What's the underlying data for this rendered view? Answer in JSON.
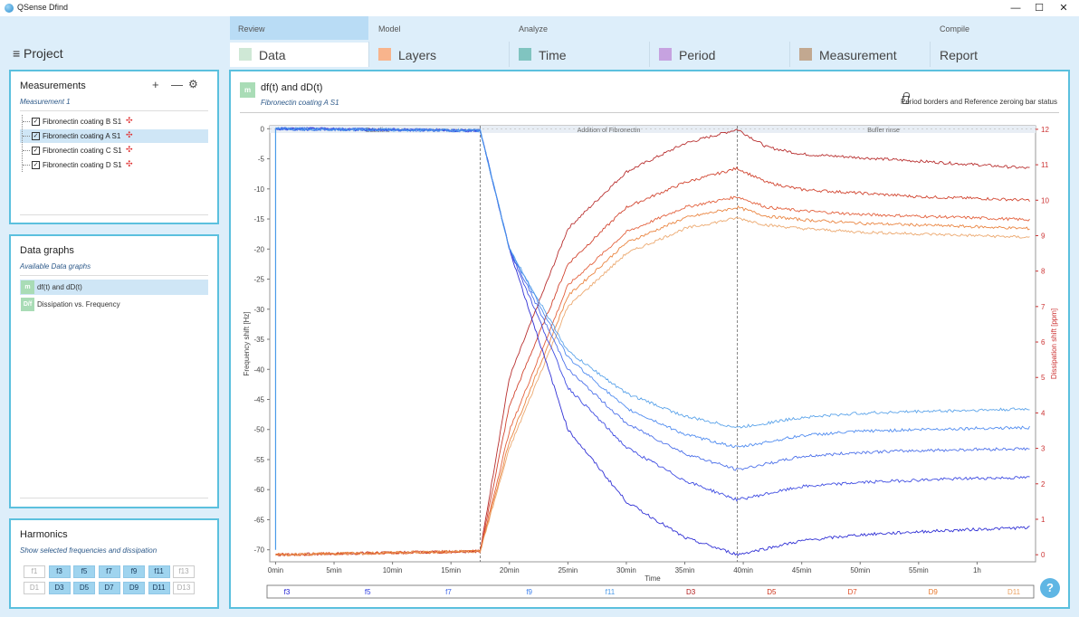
{
  "window": {
    "title": "QSense Dfind",
    "minimize": "—",
    "maximize": "☐",
    "close": "✕"
  },
  "nav": {
    "project": "≡ Project",
    "groups": {
      "review": "Review",
      "model": "Model",
      "analyze": "Analyze",
      "compile": "Compile"
    },
    "tabs": [
      {
        "label": "Data",
        "color": "#cfe8d6"
      },
      {
        "label": "Layers",
        "color": "#f8b48c"
      },
      {
        "label": "Time",
        "color": "#80c4c0"
      },
      {
        "label": "Period",
        "color": "#c6a2e0"
      },
      {
        "label": "Measurement",
        "color": "#c2a890"
      },
      {
        "label": "Report",
        "color": ""
      }
    ],
    "active_tab": "Data"
  },
  "measurements": {
    "title": "Measurements",
    "subtitle": "Measurement 1",
    "add": "+",
    "remove": "—",
    "settings": "⚙",
    "items": [
      {
        "name": "Fibronectin coating B S1",
        "selected": false
      },
      {
        "name": "Fibronectin coating A S1",
        "selected": true
      },
      {
        "name": "Fibronectin coating C S1",
        "selected": false
      },
      {
        "name": "Fibronectin coating D S1",
        "selected": false
      }
    ],
    "status_icon": "✣",
    "check": "✓"
  },
  "data_graphs": {
    "title": "Data graphs",
    "subtitle": "Available Data graphs",
    "items": [
      {
        "badge": "m",
        "label": "df(t) and dD(t)",
        "selected": true
      },
      {
        "badge": "D/f",
        "label": "Dissipation vs. Frequency",
        "selected": false
      }
    ]
  },
  "harmonics": {
    "title": "Harmonics",
    "subtitle": "Show selected frequencies and dissipation",
    "freq": [
      {
        "label": "f1",
        "on": false
      },
      {
        "label": "f3",
        "on": true
      },
      {
        "label": "f5",
        "on": true
      },
      {
        "label": "f7",
        "on": true
      },
      {
        "label": "f9",
        "on": true
      },
      {
        "label": "f11",
        "on": true
      },
      {
        "label": "f13",
        "on": false
      }
    ],
    "diss": [
      {
        "label": "D1",
        "on": false
      },
      {
        "label": "D3",
        "on": true
      },
      {
        "label": "D5",
        "on": true
      },
      {
        "label": "D7",
        "on": true
      },
      {
        "label": "D9",
        "on": true
      },
      {
        "label": "D11",
        "on": true
      },
      {
        "label": "D13",
        "on": false
      }
    ]
  },
  "main": {
    "badge": "m",
    "title": "df(t) and dD(t)",
    "subtitle": "Fibronectin coating A S1",
    "period_status": "Period borders and Reference zeroing bar status",
    "help": "?"
  },
  "chart_data": {
    "type": "line",
    "xlabel": "Time",
    "ylabel": "Frequency shift [Hz]",
    "y2label": "Dissipation shift [ppm]",
    "x_ticks": [
      "0min",
      "5min",
      "10min",
      "15min",
      "20min",
      "25min",
      "30min",
      "35min",
      "40min",
      "45min",
      "50min",
      "55min",
      "1h"
    ],
    "x_tick_minutes": [
      0,
      5,
      10,
      15,
      20,
      25,
      30,
      35,
      40,
      45,
      50,
      55,
      60
    ],
    "xlim": [
      -0.5,
      65
    ],
    "ylim": [
      -72,
      0.5
    ],
    "y_ticks": [
      0,
      -5,
      -10,
      -15,
      -20,
      -25,
      -30,
      -35,
      -40,
      -45,
      -50,
      -55,
      -60,
      -65,
      -70
    ],
    "y2lim": [
      -0.2,
      12.1
    ],
    "y2_ticks": [
      0,
      1,
      2,
      3,
      4,
      5,
      6,
      7,
      8,
      9,
      10,
      11,
      12
    ],
    "periods": [
      {
        "label": "Baseline",
        "start": 0,
        "end": 17.5
      },
      {
        "label": "Addition of Fibronectin",
        "start": 17.5,
        "end": 39.5
      },
      {
        "label": "Buffer rinse",
        "start": 39.5,
        "end": 64.5
      }
    ],
    "series": [
      {
        "name": "f3",
        "axis": "left",
        "color": "#1a1ad0",
        "values": [
          [
            0,
            0
          ],
          [
            17.5,
            -0.3
          ],
          [
            20,
            -20
          ],
          [
            25,
            -50
          ],
          [
            30,
            -62
          ],
          [
            35,
            -68
          ],
          [
            39.5,
            -70.8
          ],
          [
            45,
            -68.5
          ],
          [
            50,
            -67.5
          ],
          [
            55,
            -67
          ],
          [
            60,
            -66.6
          ],
          [
            64.5,
            -66.3
          ]
        ]
      },
      {
        "name": "f5",
        "axis": "left",
        "color": "#2a3adf",
        "values": [
          [
            0,
            0
          ],
          [
            17.5,
            -0.3
          ],
          [
            20,
            -20
          ],
          [
            25,
            -43
          ],
          [
            30,
            -53
          ],
          [
            35,
            -58.5
          ],
          [
            39.5,
            -61.7
          ],
          [
            45,
            -59.5
          ],
          [
            50,
            -58.8
          ],
          [
            55,
            -58.4
          ],
          [
            60,
            -58.1
          ],
          [
            64.5,
            -58
          ]
        ]
      },
      {
        "name": "f7",
        "axis": "left",
        "color": "#3a62e8",
        "values": [
          [
            0,
            0
          ],
          [
            17.5,
            -0.3
          ],
          [
            20,
            -20
          ],
          [
            25,
            -40
          ],
          [
            30,
            -49
          ],
          [
            35,
            -54
          ],
          [
            39.5,
            -56.7
          ],
          [
            45,
            -54.5
          ],
          [
            50,
            -53.8
          ],
          [
            55,
            -53.5
          ],
          [
            60,
            -53.3
          ],
          [
            64.5,
            -53.2
          ]
        ]
      },
      {
        "name": "f9",
        "axis": "left",
        "color": "#3d80ee",
        "values": [
          [
            0,
            0
          ],
          [
            17.5,
            -0.3
          ],
          [
            20,
            -20
          ],
          [
            25,
            -38
          ],
          [
            30,
            -46.5
          ],
          [
            35,
            -50.8
          ],
          [
            39.5,
            -53
          ],
          [
            45,
            -51
          ],
          [
            50,
            -50.3
          ],
          [
            55,
            -50
          ],
          [
            60,
            -49.8
          ],
          [
            64.5,
            -49.7
          ]
        ]
      },
      {
        "name": "f11",
        "axis": "left",
        "color": "#4a9ae8",
        "values": [
          [
            0,
            0
          ],
          [
            17.5,
            -0.3
          ],
          [
            20,
            -20
          ],
          [
            25,
            -37
          ],
          [
            30,
            -44
          ],
          [
            35,
            -47.8
          ],
          [
            39.5,
            -49.7
          ],
          [
            45,
            -48
          ],
          [
            50,
            -47.3
          ],
          [
            55,
            -47
          ],
          [
            60,
            -46.8
          ],
          [
            64.5,
            -46.6
          ]
        ]
      },
      {
        "name": "D3",
        "axis": "right",
        "color": "#b01818",
        "values": [
          [
            0,
            0
          ],
          [
            17.5,
            0.1
          ],
          [
            20,
            5
          ],
          [
            25,
            9.2
          ],
          [
            30,
            10.8
          ],
          [
            35,
            11.6
          ],
          [
            39.5,
            12.0
          ],
          [
            42,
            11.5
          ],
          [
            45,
            11.3
          ],
          [
            50,
            11.2
          ],
          [
            55,
            11.1
          ],
          [
            60,
            11.0
          ],
          [
            64.5,
            10.9
          ]
        ]
      },
      {
        "name": "D5",
        "axis": "right",
        "color": "#cc3018",
        "values": [
          [
            0,
            0
          ],
          [
            17.5,
            0.1
          ],
          [
            20,
            4.2
          ],
          [
            25,
            8.2
          ],
          [
            30,
            9.8
          ],
          [
            35,
            10.5
          ],
          [
            39.5,
            10.9
          ],
          [
            42,
            10.5
          ],
          [
            45,
            10.3
          ],
          [
            50,
            10.2
          ],
          [
            55,
            10.1
          ],
          [
            60,
            10.05
          ],
          [
            64.5,
            10.0
          ]
        ]
      },
      {
        "name": "D7",
        "axis": "right",
        "color": "#e05028",
        "values": [
          [
            0,
            0
          ],
          [
            17.5,
            0.1
          ],
          [
            20,
            3.5
          ],
          [
            25,
            7.6
          ],
          [
            30,
            9.1
          ],
          [
            35,
            9.8
          ],
          [
            39.5,
            10.1
          ],
          [
            42,
            9.8
          ],
          [
            45,
            9.7
          ],
          [
            50,
            9.6
          ],
          [
            55,
            9.55
          ],
          [
            60,
            9.5
          ],
          [
            64.5,
            9.45
          ]
        ]
      },
      {
        "name": "D9",
        "axis": "right",
        "color": "#e8782c",
        "values": [
          [
            0,
            0
          ],
          [
            17.5,
            0.1
          ],
          [
            20,
            3.2
          ],
          [
            25,
            7.3
          ],
          [
            30,
            8.8
          ],
          [
            35,
            9.5
          ],
          [
            39.5,
            9.8
          ],
          [
            42,
            9.55
          ],
          [
            45,
            9.45
          ],
          [
            50,
            9.35
          ],
          [
            55,
            9.3
          ],
          [
            60,
            9.25
          ],
          [
            64.5,
            9.2
          ]
        ]
      },
      {
        "name": "D11",
        "axis": "right",
        "color": "#eaa060",
        "values": [
          [
            0,
            0
          ],
          [
            17.5,
            0.1
          ],
          [
            20,
            3.0
          ],
          [
            25,
            7.0
          ],
          [
            30,
            8.5
          ],
          [
            35,
            9.2
          ],
          [
            39.5,
            9.5
          ],
          [
            42,
            9.3
          ],
          [
            45,
            9.2
          ],
          [
            50,
            9.1
          ],
          [
            55,
            9.05
          ],
          [
            60,
            9.0
          ],
          [
            64.5,
            8.95
          ]
        ]
      }
    ],
    "legend_labels": [
      {
        "label": "f3",
        "color": "#1a1ad0"
      },
      {
        "label": "f5",
        "color": "#2a3adf"
      },
      {
        "label": "f7",
        "color": "#3a62e8"
      },
      {
        "label": "f9",
        "color": "#3d80ee"
      },
      {
        "label": "f11",
        "color": "#4a9ae8"
      },
      {
        "label": "D3",
        "color": "#b01818"
      },
      {
        "label": "D5",
        "color": "#cc3018"
      },
      {
        "label": "D7",
        "color": "#e05028"
      },
      {
        "label": "D9",
        "color": "#e8782c"
      },
      {
        "label": "D11",
        "color": "#eaa060"
      }
    ],
    "legend_placement": "bottom",
    "grid": false
  }
}
